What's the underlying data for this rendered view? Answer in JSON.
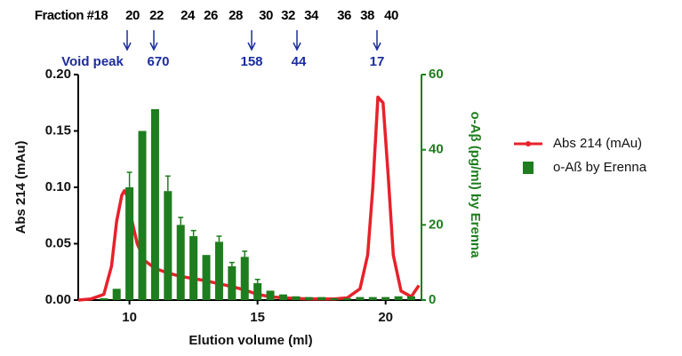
{
  "chart_data": {
    "type": "combo",
    "fractions": [
      "Fraction #18",
      "20",
      "22",
      "24",
      "26",
      "28",
      "30",
      "32",
      "34",
      "36",
      "38",
      "40"
    ],
    "markers": [
      "Void peak",
      "670",
      "158",
      "44",
      "17"
    ],
    "x_label": "Elution volume (ml)",
    "y_label": "Abs 214 (mAu)",
    "y2_label": "o-Aβ (pg/ml) by Erenna",
    "xlim": [
      8,
      21.4
    ],
    "xticks": [
      10,
      15,
      20
    ],
    "ylim": [
      0,
      0.2
    ],
    "yticks": [
      {
        "value": 0,
        "label": "0.00"
      },
      {
        "value": 0.05,
        "label": "0.05"
      },
      {
        "value": 0.1,
        "label": "0.10"
      },
      {
        "value": 0.15,
        "label": "0.15"
      },
      {
        "value": 0.2,
        "label": "0.20"
      }
    ],
    "y2lim": [
      0,
      60
    ],
    "y2ticks": [
      0,
      20,
      40,
      60
    ],
    "series": [
      {
        "name": "Abs 214 (mAu)",
        "type": "line",
        "color": "#e8212b",
        "x": [
          8,
          8.5,
          9,
          9.3,
          9.5,
          9.7,
          9.8,
          9.9,
          10.1,
          10.3,
          10.6,
          11,
          11.5,
          12,
          13,
          14,
          14.5,
          15,
          15.5,
          16,
          17,
          18,
          18.5,
          19,
          19.3,
          19.5,
          19.7,
          19.9,
          20.1,
          20.3,
          20.6,
          21,
          21.3
        ],
        "values": [
          0,
          0.001,
          0.005,
          0.03,
          0.07,
          0.093,
          0.097,
          0.093,
          0.07,
          0.05,
          0.035,
          0.028,
          0.024,
          0.021,
          0.017,
          0.012,
          0.009,
          0.005,
          0.003,
          0.002,
          0.001,
          0.001,
          0.002,
          0.01,
          0.04,
          0.1,
          0.18,
          0.175,
          0.11,
          0.04,
          0.008,
          0.003,
          0.013
        ]
      },
      {
        "name": "o-Aß by Erenna",
        "type": "bar",
        "axis": "y2",
        "color": "#1e7d1e",
        "x": [
          9,
          9.5,
          10,
          10.5,
          11,
          11.5,
          12,
          12.5,
          13,
          13.5,
          14,
          14.5,
          15,
          15.5,
          16,
          16.5,
          17,
          17.5,
          18,
          18.5,
          19,
          19.5,
          20,
          20.5,
          21
        ],
        "values": [
          0.5,
          3,
          30,
          45,
          50.8,
          29,
          20,
          17,
          12,
          15.5,
          9,
          11.5,
          4.5,
          2.5,
          1.5,
          1,
          0.8,
          0.8,
          0.5,
          0.5,
          0.8,
          0.8,
          0.8,
          1,
          1
        ],
        "errors": [
          null,
          null,
          4,
          null,
          null,
          4,
          2,
          1.5,
          null,
          1.5,
          1,
          1.5,
          1,
          null,
          null,
          null,
          null,
          null,
          null,
          null,
          null,
          null,
          null,
          null,
          null
        ]
      }
    ]
  }
}
